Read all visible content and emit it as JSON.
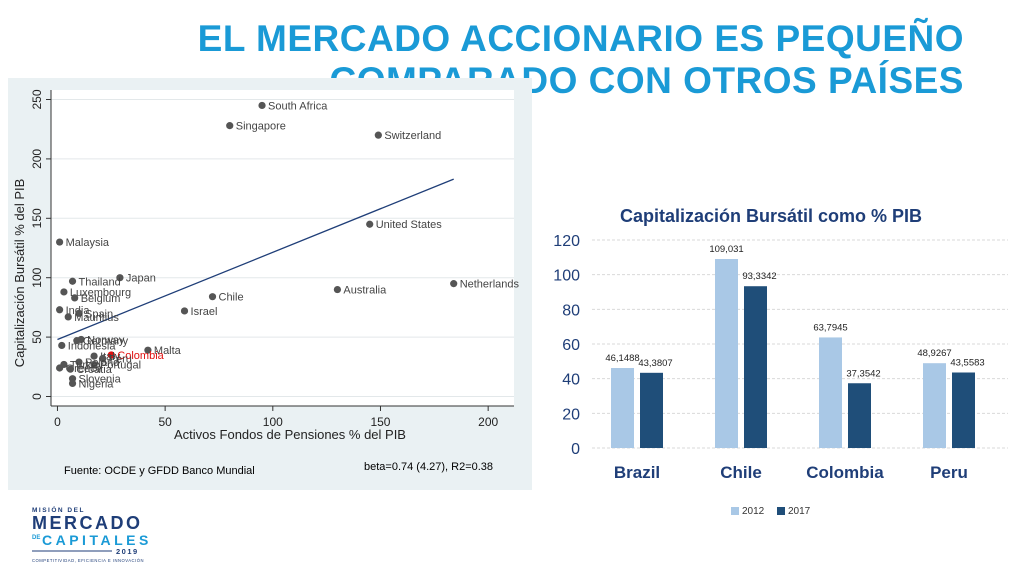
{
  "slide": {
    "title_line1": "EL MERCADO ACCIONARIO ES PEQUEÑO",
    "title_line2": "COMPARADO CON OTROS PAÍSES"
  },
  "logo": {
    "line1": "MISIÓN DEL",
    "line2": "MERCADO",
    "line3": "DE",
    "line4": "CAPITALES",
    "line5": "2019",
    "line6": "COMPETITIVIDAD, EFICIENCIA E INNOVACIÓN"
  },
  "colors": {
    "title": "#1a9ad6",
    "panel_bg": "#eaf1f3",
    "point": "#555555",
    "highlight": "#e01010",
    "fit_line": "#1f3e78",
    "bar_2012": "#a9c8e6",
    "bar_2017": "#1f4e79"
  },
  "chart_data": [
    {
      "type": "scatter",
      "xlabel": "Activos Fondos de Pensiones % del PIB",
      "ylabel": "Capitalización Bursátil % del PIB",
      "xlim": [
        -3,
        212
      ],
      "ylim": [
        -8,
        258
      ],
      "xticks": [
        "0",
        "50",
        "100",
        "150",
        "200"
      ],
      "yticks": [
        "0",
        "50",
        "100",
        "150",
        "200",
        "250"
      ],
      "grid": true,
      "source": "Fuente: OCDE y GFDD Banco Mundial",
      "stats": "beta=0.74 (4.27), R2=0.38",
      "fit_line": {
        "x": [
          0,
          184
        ],
        "y": [
          48,
          183
        ]
      },
      "highlight": "Colombia",
      "points": [
        {
          "label": "South Africa",
          "x": 95,
          "y": 245
        },
        {
          "label": "Singapore",
          "x": 80,
          "y": 228
        },
        {
          "label": "Switzerland",
          "x": 149,
          "y": 220
        },
        {
          "label": "United States",
          "x": 145,
          "y": 145
        },
        {
          "label": "Malaysia",
          "x": 1,
          "y": 130
        },
        {
          "label": "Japan",
          "x": 29,
          "y": 100
        },
        {
          "label": "Thailand",
          "x": 7,
          "y": 97
        },
        {
          "label": "Netherlands",
          "x": 184,
          "y": 95
        },
        {
          "label": "Australia",
          "x": 130,
          "y": 90
        },
        {
          "label": "Luxembourg",
          "x": 3,
          "y": 88
        },
        {
          "label": "Chile",
          "x": 72,
          "y": 84
        },
        {
          "label": "Belgium",
          "x": 8,
          "y": 83
        },
        {
          "label": "Israel",
          "x": 59,
          "y": 72
        },
        {
          "label": "India",
          "x": 1,
          "y": 73
        },
        {
          "label": "Spain",
          "x": 10,
          "y": 70
        },
        {
          "label": "Mauritius",
          "x": 5,
          "y": 67
        },
        {
          "label": "Norway",
          "x": 11,
          "y": 48
        },
        {
          "label": "Germany",
          "x": 9,
          "y": 47
        },
        {
          "label": "Indonesia",
          "x": 2,
          "y": 43
        },
        {
          "label": "Malta",
          "x": 42,
          "y": 39
        },
        {
          "label": "Colombia",
          "x": 25,
          "y": 35
        },
        {
          "label": "Italy",
          "x": 17,
          "y": 34
        },
        {
          "label": "Peru",
          "x": 21,
          "y": 32
        },
        {
          "label": "Poland",
          "x": 10,
          "y": 29
        },
        {
          "label": "Portugal",
          "x": 17,
          "y": 27
        },
        {
          "label": "Turkey",
          "x": 3,
          "y": 27
        },
        {
          "label": "Greece",
          "x": 1,
          "y": 24
        },
        {
          "label": "Croatia",
          "x": 6,
          "y": 23
        },
        {
          "label": "Slovenia",
          "x": 7,
          "y": 15
        },
        {
          "label": "Nigeria",
          "x": 7,
          "y": 11
        }
      ]
    },
    {
      "type": "bar",
      "title": "Capitalización Bursátil como % PIB",
      "categories": [
        "Brazil",
        "Chile",
        "Colombia",
        "Peru"
      ],
      "ylim": [
        0,
        120
      ],
      "yticks": [
        "0",
        "20",
        "40",
        "60",
        "80",
        "100",
        "120"
      ],
      "legend_position": "bottom",
      "series": [
        {
          "name": "2012",
          "values": [
            46.1488,
            109.031,
            63.7945,
            48.9267
          ],
          "labels": [
            "46,1488",
            "109,031",
            "63,7945",
            "48,9267"
          ]
        },
        {
          "name": "2017",
          "values": [
            43.3807,
            93.3342,
            37.3542,
            43.5583
          ],
          "labels": [
            "43,3807",
            "93,3342",
            "37,3542",
            "43,5583"
          ]
        }
      ]
    }
  ]
}
